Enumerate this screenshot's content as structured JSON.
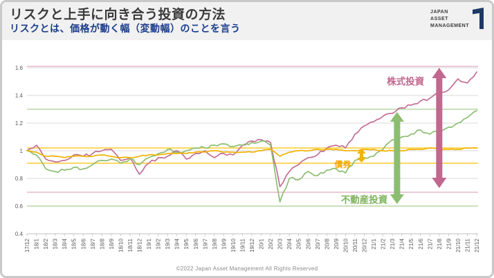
{
  "header": {
    "title": "リスクと上手に向き合う投資の方法",
    "subtitle": "リスクとは、価格が動く幅（変動幅）のことを言う"
  },
  "logo": {
    "lines": [
      "JAPAN",
      "ASSET",
      "MANAGEMENT"
    ],
    "mark_color": "#1f3864"
  },
  "footer": {
    "copyright": "©2022 Japan Asset Management All Rights Reserved"
  },
  "colors": {
    "title_text": "#3a3a3a",
    "subtitle_text": "#1b3c8c",
    "grid": "#dadada",
    "axis": "#bfbfbf",
    "tick_text": "#595959"
  },
  "chart_data": {
    "type": "line",
    "title": "",
    "xlabel": "",
    "ylabel": "",
    "ylim": [
      0.4,
      1.6
    ],
    "grid": true,
    "legend_position": "inline-annotations",
    "y_ticks": [
      "0.4",
      "0.6",
      "0.8",
      "1",
      "1.2",
      "1.4",
      "1.6"
    ],
    "x_labels": [
      "17/12",
      "18/1",
      "18/2",
      "18/3",
      "18/4",
      "18/5",
      "18/6",
      "18/7",
      "18/8",
      "18/9",
      "18/10",
      "18/11",
      "18/12",
      "19/1",
      "19/2",
      "19/3",
      "19/4",
      "19/5",
      "19/6",
      "19/7",
      "19/8",
      "19/9",
      "19/10",
      "19/11",
      "19/12",
      "20/1",
      "20/2",
      "20/3",
      "20/4",
      "20/5",
      "20/6",
      "20/7",
      "20/8",
      "20/9",
      "20/10",
      "20/11",
      "20/12",
      "21/1",
      "21/2",
      "21/3",
      "21/4",
      "21/5",
      "21/6",
      "21/7",
      "21/8",
      "21/9",
      "21/10",
      "21/11",
      "21/12"
    ],
    "series": [
      {
        "key": "stocks",
        "name": "株式投資",
        "color": "#c26e96",
        "band_color": "#e2a9c4",
        "band_max": 1.61,
        "band_min": 0.7,
        "volatility": 0.011,
        "values": [
          1.0,
          1.04,
          0.94,
          0.92,
          0.93,
          0.97,
          0.96,
          0.98,
          1.0,
          1.01,
          0.93,
          0.95,
          0.83,
          0.91,
          0.95,
          0.96,
          1.0,
          0.94,
          0.98,
          1.0,
          0.95,
          0.98,
          0.97,
          1.04,
          1.07,
          1.08,
          1.06,
          0.74,
          0.85,
          0.9,
          0.95,
          0.97,
          1.02,
          1.04,
          1.02,
          1.12,
          1.18,
          1.21,
          1.25,
          1.27,
          1.31,
          1.33,
          1.36,
          1.38,
          1.42,
          1.44,
          1.52,
          1.49,
          1.57
        ]
      },
      {
        "key": "reit",
        "name": "不動産投資",
        "color": "#8cbd70",
        "band_color": "#a9ce90",
        "band_max": 1.3,
        "band_min": 0.6,
        "volatility": 0.011,
        "values": [
          1.0,
          0.97,
          0.87,
          0.85,
          0.86,
          0.88,
          0.87,
          0.9,
          0.93,
          0.94,
          0.91,
          0.94,
          0.9,
          0.95,
          0.98,
          1.01,
          0.99,
          1.0,
          1.02,
          1.02,
          1.04,
          1.05,
          1.03,
          1.04,
          1.06,
          1.07,
          1.04,
          0.63,
          0.8,
          0.79,
          0.85,
          0.82,
          0.86,
          0.87,
          0.84,
          0.93,
          0.95,
          0.96,
          1.01,
          1.08,
          1.1,
          1.12,
          1.15,
          1.12,
          1.15,
          1.17,
          1.2,
          1.24,
          1.29
        ]
      },
      {
        "key": "bonds",
        "name": "債券",
        "color": "#f2b200",
        "band_color": "#ffc000",
        "band_max": 1.02,
        "band_min": 0.91,
        "volatility": 0.0035,
        "values": [
          1.0,
          0.99,
          0.96,
          0.96,
          0.95,
          0.96,
          0.96,
          0.96,
          0.97,
          0.96,
          0.95,
          0.95,
          0.96,
          0.97,
          0.97,
          0.98,
          0.98,
          0.98,
          0.99,
          0.99,
          1.0,
          0.99,
          0.99,
          0.99,
          0.99,
          1.0,
          1.01,
          0.96,
          0.99,
          1.0,
          1.0,
          1.01,
          1.01,
          1.01,
          1.0,
          1.0,
          1.01,
          1.01,
          1.0,
          1.0,
          1.0,
          1.01,
          1.01,
          1.02,
          1.01,
          1.01,
          1.01,
          1.02,
          1.02
        ]
      }
    ],
    "annotations": {
      "arrows": [
        {
          "name": "stocks-range-arrow",
          "color": "#c2688f",
          "x_month": 44.0,
          "value_top": 1.6,
          "value_bottom": 0.73,
          "head_w": 21,
          "head_h": 15,
          "shaft_w": 9
        },
        {
          "name": "reit-range-arrow",
          "color": "#8cbd70",
          "x_month": 39.5,
          "value_top": 1.28,
          "value_bottom": 0.615,
          "head_w": 20,
          "head_h": 14,
          "shaft_w": 9
        },
        {
          "name": "bonds-range-arrow",
          "color": "#f2b200",
          "x_month": 35.7,
          "value_top": 1.015,
          "value_bottom": 0.915,
          "head_w": 13,
          "head_h": 7,
          "shaft_w": 5
        }
      ],
      "labels": [
        {
          "name": "stocks-label",
          "text": "株式投資",
          "color": "#c2688f",
          "x_month": 40.4,
          "value": 1.5,
          "size": 13.5
        },
        {
          "name": "bonds-label",
          "text": "債券",
          "color": "#f0a800",
          "x_month": 33.7,
          "value": 0.9,
          "size": 12
        },
        {
          "name": "reit-label",
          "text": "不動産投資",
          "color": "#7eb25b",
          "x_month": 36.0,
          "value": 0.645,
          "size": 13.5
        }
      ]
    }
  }
}
